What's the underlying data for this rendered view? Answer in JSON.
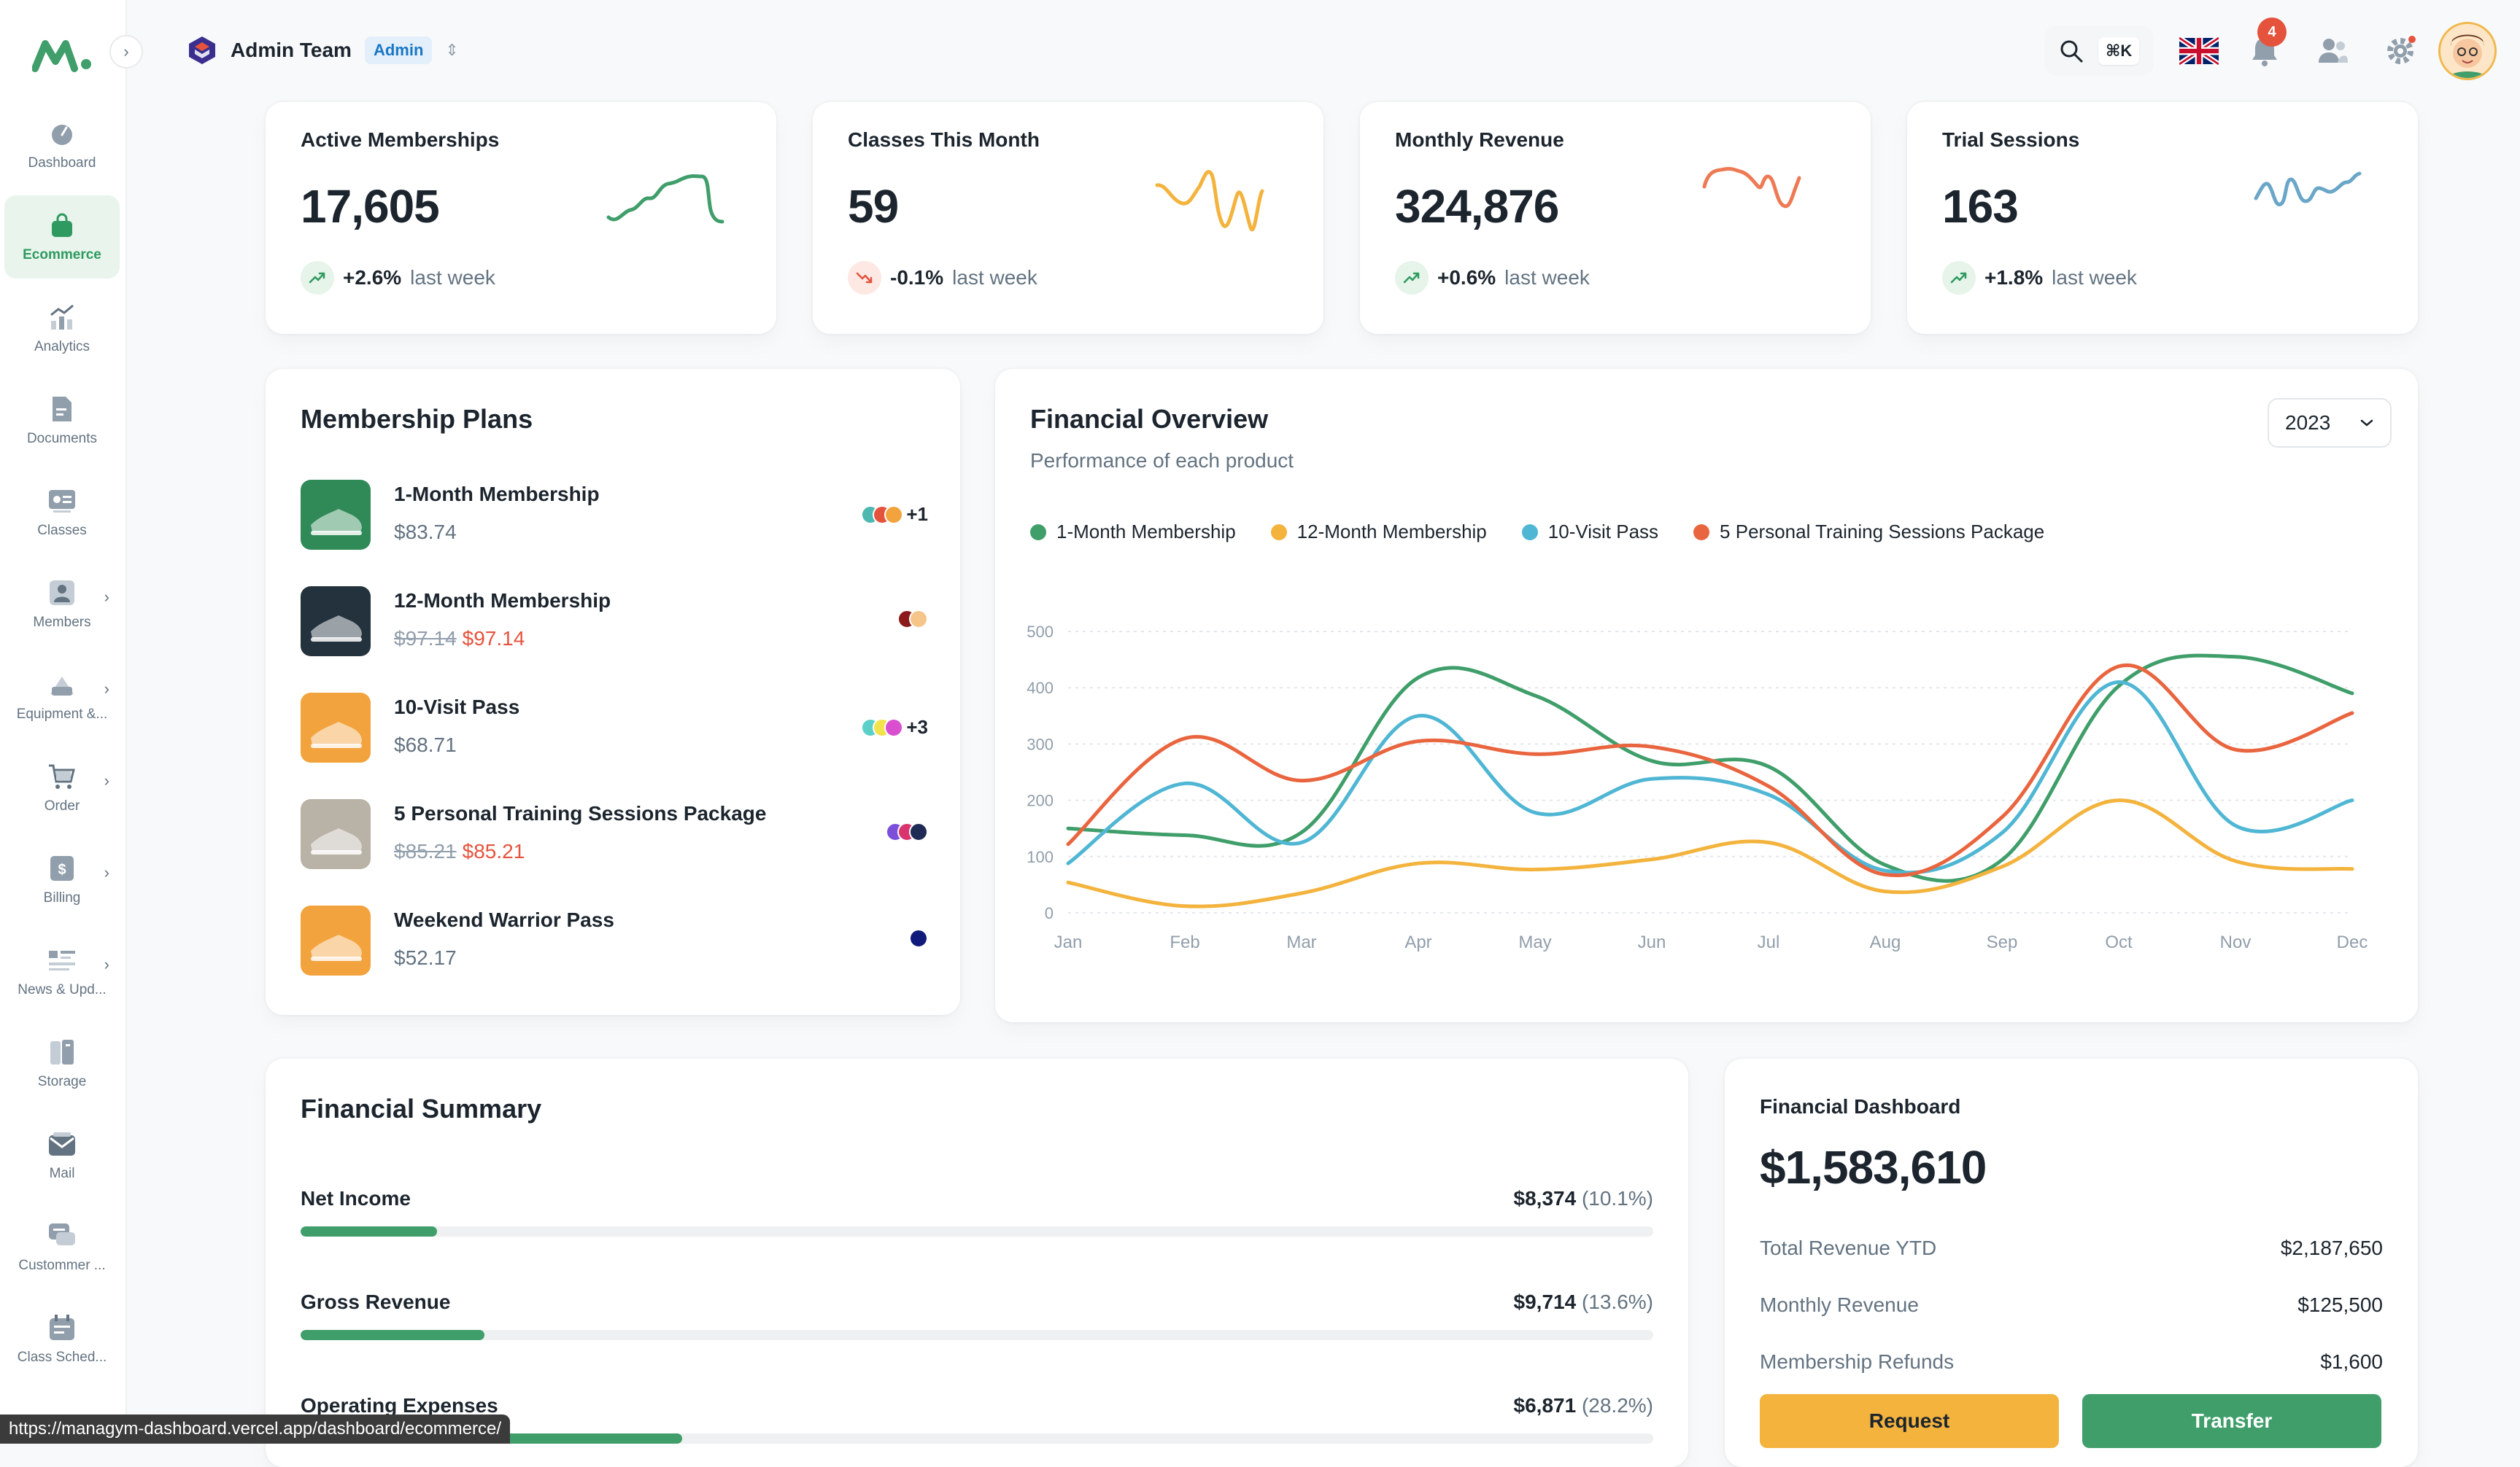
{
  "sidebar": {
    "items": [
      {
        "label": "Dashboard",
        "icon": "dashboard-icon",
        "active": false,
        "chevron": false
      },
      {
        "label": "Ecommerce",
        "icon": "shopping-bag-icon",
        "active": true,
        "chevron": false
      },
      {
        "label": "Analytics",
        "icon": "analytics-icon",
        "active": false,
        "chevron": false
      },
      {
        "label": "Documents",
        "icon": "document-icon",
        "active": false,
        "chevron": false
      },
      {
        "label": "Classes",
        "icon": "classes-icon",
        "active": false,
        "chevron": false
      },
      {
        "label": "Members",
        "icon": "members-icon",
        "active": false,
        "chevron": true
      },
      {
        "label": "Equipment &...",
        "icon": "equipment-icon",
        "active": false,
        "chevron": true
      },
      {
        "label": "Order",
        "icon": "cart-icon",
        "active": false,
        "chevron": true
      },
      {
        "label": "Billing",
        "icon": "billing-icon",
        "active": false,
        "chevron": true
      },
      {
        "label": "News & Upd...",
        "icon": "news-icon",
        "active": false,
        "chevron": true
      },
      {
        "label": "Storage",
        "icon": "storage-icon",
        "active": false,
        "chevron": false
      },
      {
        "label": "Mail",
        "icon": "mail-icon",
        "active": false,
        "chevron": false
      },
      {
        "label": "Custommer ...",
        "icon": "chat-icon",
        "active": false,
        "chevron": false
      },
      {
        "label": "Class Sched...",
        "icon": "schedule-icon",
        "active": false,
        "chevron": false
      }
    ]
  },
  "header": {
    "team_name": "Admin Team",
    "team_badge": "Admin",
    "search_shortcut": "⌘K",
    "notification_count": "4"
  },
  "stats": [
    {
      "title": "Active Memberships",
      "value": "17,605",
      "change": "+2.6%",
      "note": "last week",
      "direction": "up",
      "color": "#3f9e6a"
    },
    {
      "title": "Classes This Month",
      "value": "59",
      "change": "-0.1%",
      "note": "last week",
      "direction": "down",
      "color": "#f3b33d"
    },
    {
      "title": "Monthly Revenue",
      "value": "324,876",
      "change": "+0.6%",
      "note": "last week",
      "direction": "up",
      "color": "#ee7a55"
    },
    {
      "title": "Trial Sessions",
      "value": "163",
      "change": "+1.8%",
      "note": "last week",
      "direction": "up",
      "color": "#6aa6c8"
    }
  ],
  "membership_plans": {
    "title": "Membership Plans",
    "items": [
      {
        "name": "1-Month Membership",
        "price": "$83.74",
        "old_price": "",
        "colors": [
          "#4cb8b0",
          "#e5533d",
          "#f3a33d"
        ],
        "more": "+1",
        "thumb": "#2f8a57"
      },
      {
        "name": "12-Month Membership",
        "price": "$97.14",
        "old_price": "$97.14",
        "colors": [
          "#8b1a1a",
          "#f5c58a"
        ],
        "more": "",
        "thumb": "#23323c"
      },
      {
        "name": "10-Visit Pass",
        "price": "$68.71",
        "old_price": "",
        "colors": [
          "#5ad0c8",
          "#f2e24b",
          "#d94fd0"
        ],
        "more": "+3",
        "thumb": "#f3a33d"
      },
      {
        "name": "5 Personal Training Sessions Package",
        "price": "$85.21",
        "old_price": "$85.21",
        "colors": [
          "#7b4fd9",
          "#d9346e",
          "#1f2a55"
        ],
        "more": "",
        "thumb": "#b9b2a6"
      },
      {
        "name": "Weekend Warrior Pass",
        "price": "$52.17",
        "old_price": "",
        "colors": [
          "#101a7a"
        ],
        "more": "",
        "thumb": "#f3a33d"
      }
    ]
  },
  "financial_overview": {
    "title": "Financial Overview",
    "subtitle": "Performance of each product",
    "year": "2023"
  },
  "chart_data": {
    "type": "line",
    "categories": [
      "Jan",
      "Feb",
      "Mar",
      "Apr",
      "May",
      "Jun",
      "Jul",
      "Aug",
      "Sep",
      "Oct",
      "Nov",
      "Dec"
    ],
    "yticks": [
      0,
      100,
      200,
      300,
      400,
      500
    ],
    "ylim": [
      0,
      500
    ],
    "grid": true,
    "legend_position": "top-left",
    "series": [
      {
        "name": "1-Month Membership",
        "color": "#3f9e6a",
        "values": [
          150,
          138,
          143,
          418,
          386,
          270,
          260,
          85,
          94,
          403,
          455,
          390
        ]
      },
      {
        "name": "12-Month Membership",
        "color": "#f3b33d",
        "values": [
          54,
          12,
          35,
          88,
          77,
          95,
          125,
          38,
          82,
          200,
          92,
          78
        ]
      },
      {
        "name": "10-Visit Pass",
        "color": "#4fb6d4",
        "values": [
          88,
          230,
          125,
          350,
          178,
          238,
          210,
          75,
          142,
          410,
          155,
          200
        ]
      },
      {
        "name": "5 Personal Training Sessions Package",
        "color": "#e9653f",
        "values": [
          122,
          310,
          235,
          305,
          282,
          295,
          225,
          68,
          170,
          438,
          290,
          355
        ]
      }
    ]
  },
  "financial_summary": {
    "title": "Financial Summary",
    "rows": [
      {
        "label": "Net Income",
        "value": "$8,374",
        "pct": "(10.1%)",
        "fill": 0.101
      },
      {
        "label": "Gross Revenue",
        "value": "$9,714",
        "pct": "(13.6%)",
        "fill": 0.136
      },
      {
        "label": "Operating Expenses",
        "value": "$6,871",
        "pct": "(28.2%)",
        "fill": 0.282
      }
    ]
  },
  "financial_dashboard": {
    "title": "Financial Dashboard",
    "total": "$1,583,610",
    "rows": [
      {
        "label": "Total Revenue YTD",
        "value": "$2,187,650"
      },
      {
        "label": "Monthly Revenue",
        "value": "$125,500"
      },
      {
        "label": "Membership Refunds",
        "value": "$1,600"
      }
    ],
    "request_label": "Request",
    "transfer_label": "Transfer"
  },
  "status_bar": {
    "url": "https://managym-dashboard.vercel.app/dashboard/ecommerce/"
  }
}
